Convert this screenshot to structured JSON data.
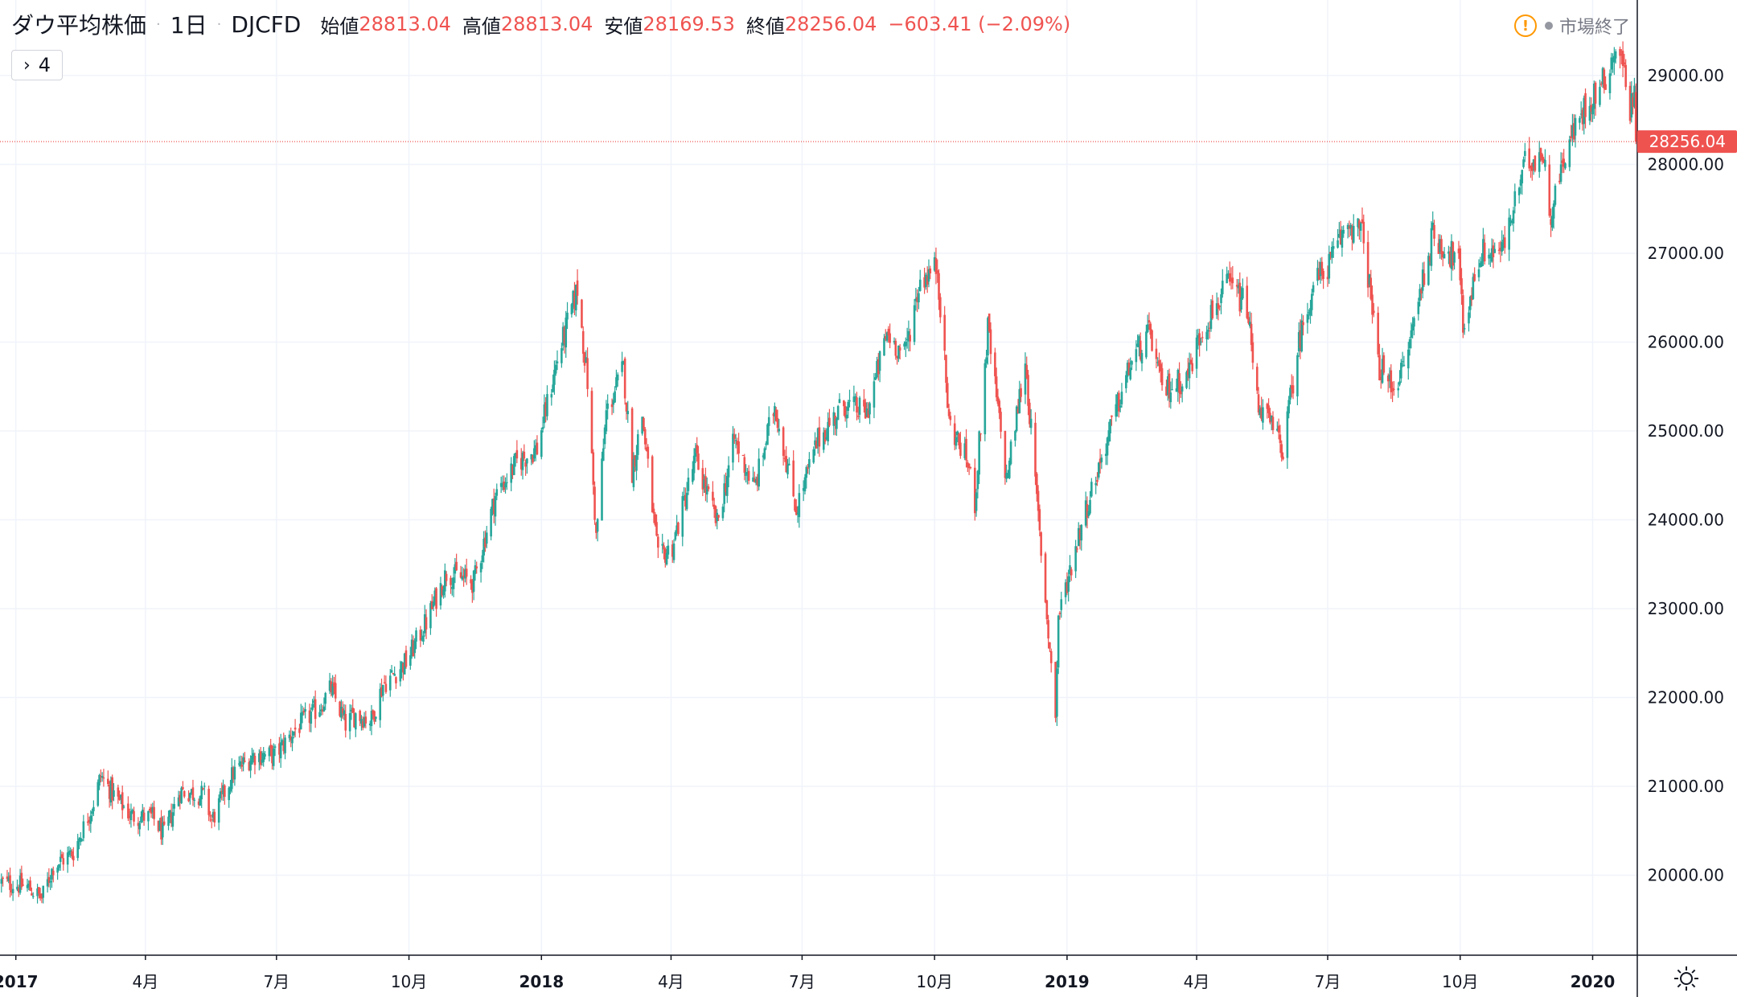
{
  "header": {
    "title": "ダウ平均株価",
    "interval": "1日",
    "symbol": "DJCFD",
    "dot": "·",
    "open_label": "始値",
    "open_value": "28813.04",
    "high_label": "高値",
    "high_value": "28813.04",
    "low_label": "安値",
    "low_value": "28169.53",
    "close_label": "終値",
    "close_value": "28256.04",
    "change": "−603.41 (−2.09%)"
  },
  "indicators_button": {
    "chevron": "›",
    "count": "4"
  },
  "market_status": {
    "icon": "warning-icon",
    "warn_glyph": "!",
    "label": "市場終了"
  },
  "price_label": {
    "value": "28256.04",
    "color": "#ef5350"
  },
  "colors": {
    "up": "#26a69a",
    "down": "#ef5350",
    "grid": "#f0f3fa",
    "axis": "#131722",
    "background": "#ffffff"
  },
  "chart_data": {
    "type": "candlestick",
    "title": "ダウ平均株価",
    "interval": "1日",
    "symbol": "DJCFD",
    "x_tick_labels": [
      "2017",
      "4月",
      "7月",
      "10月",
      "2018",
      "4月",
      "7月",
      "10月",
      "2019",
      "4月",
      "7月",
      "10月",
      "2020"
    ],
    "x_tick_dates": [
      "2017-01-01",
      "2017-04-01",
      "2017-07-01",
      "2017-10-01",
      "2018-01-01",
      "2018-04-01",
      "2018-07-01",
      "2018-10-01",
      "2019-01-01",
      "2019-04-01",
      "2019-07-01",
      "2019-10-01",
      "2020-01-01"
    ],
    "y_tick_labels": [
      "20000.00",
      "21000.00",
      "22000.00",
      "23000.00",
      "24000.00",
      "25000.00",
      "26000.00",
      "27000.00",
      "28000.00",
      "29000.00"
    ],
    "y_ticks": [
      20000,
      21000,
      22000,
      23000,
      24000,
      25000,
      26000,
      27000,
      28000,
      29000
    ],
    "ylim": [
      19100,
      29850
    ],
    "xlim": [
      "2016-12-21",
      "2020-02-01"
    ],
    "grid": true,
    "last_price": 28256.04,
    "series": [
      {
        "name": "DJCFD",
        "points": [
          [
            "2016-12-22",
            19920
          ],
          [
            "2017-01-09",
            19870
          ],
          [
            "2017-01-19",
            19740
          ],
          [
            "2017-01-27",
            20100
          ],
          [
            "2017-02-10",
            20260
          ],
          [
            "2017-02-24",
            20820
          ],
          [
            "2017-03-01",
            21120
          ],
          [
            "2017-03-10",
            20900
          ],
          [
            "2017-03-22",
            20670
          ],
          [
            "2017-04-06",
            20650
          ],
          [
            "2017-04-14",
            20450
          ],
          [
            "2017-04-25",
            20950
          ],
          [
            "2017-05-12",
            20900
          ],
          [
            "2017-05-17",
            20610
          ],
          [
            "2017-06-01",
            21150
          ],
          [
            "2017-06-15",
            21350
          ],
          [
            "2017-06-30",
            21350
          ],
          [
            "2017-07-14",
            21640
          ],
          [
            "2017-07-31",
            21900
          ],
          [
            "2017-08-08",
            22100
          ],
          [
            "2017-08-18",
            21700
          ],
          [
            "2017-08-25",
            21810
          ],
          [
            "2017-09-05",
            21750
          ],
          [
            "2017-09-13",
            22150
          ],
          [
            "2017-09-29",
            22400
          ],
          [
            "2017-10-13",
            22850
          ],
          [
            "2017-10-27",
            23400
          ],
          [
            "2017-11-15",
            23300
          ],
          [
            "2017-11-30",
            24270
          ],
          [
            "2017-12-15",
            24650
          ],
          [
            "2017-12-29",
            24800
          ],
          [
            "2018-01-12",
            25800
          ],
          [
            "2018-01-26",
            26600
          ],
          [
            "2018-02-02",
            25550
          ],
          [
            "2018-02-08",
            23800
          ],
          [
            "2018-02-15",
            25200
          ],
          [
            "2018-02-27",
            25700
          ],
          [
            "2018-03-05",
            24550
          ],
          [
            "2018-03-12",
            25180
          ],
          [
            "2018-03-23",
            23550
          ],
          [
            "2018-04-02",
            23700
          ],
          [
            "2018-04-18",
            24700
          ],
          [
            "2018-05-03",
            23950
          ],
          [
            "2018-05-15",
            24900
          ],
          [
            "2018-05-29",
            24350
          ],
          [
            "2018-06-12",
            25300
          ],
          [
            "2018-06-27",
            24120
          ],
          [
            "2018-07-12",
            24900
          ],
          [
            "2018-07-30",
            25300
          ],
          [
            "2018-08-15",
            25200
          ],
          [
            "2018-08-29",
            26100
          ],
          [
            "2018-09-10",
            25850
          ],
          [
            "2018-09-21",
            26700
          ],
          [
            "2018-10-03",
            26850
          ],
          [
            "2018-10-11",
            25100
          ],
          [
            "2018-10-24",
            24650
          ],
          [
            "2018-10-29",
            24200
          ],
          [
            "2018-11-07",
            26150
          ],
          [
            "2018-11-20",
            24450
          ],
          [
            "2018-12-03",
            25800
          ],
          [
            "2018-12-10",
            24400
          ],
          [
            "2018-12-24",
            21800
          ],
          [
            "2018-12-26",
            22900
          ],
          [
            "2019-01-10",
            23900
          ],
          [
            "2019-01-25",
            24700
          ],
          [
            "2019-02-15",
            25800
          ],
          [
            "2019-02-28",
            26100
          ],
          [
            "2019-03-08",
            25450
          ],
          [
            "2019-03-25",
            25600
          ],
          [
            "2019-04-05",
            26150
          ],
          [
            "2019-04-23",
            26650
          ],
          [
            "2019-05-06",
            26400
          ],
          [
            "2019-05-13",
            25350
          ],
          [
            "2019-05-31",
            24800
          ],
          [
            "2019-06-11",
            26000
          ],
          [
            "2019-06-21",
            26650
          ],
          [
            "2019-07-03",
            26900
          ],
          [
            "2019-07-15",
            27350
          ],
          [
            "2019-07-26",
            27200
          ],
          [
            "2019-08-05",
            25750
          ],
          [
            "2019-08-14",
            25500
          ],
          [
            "2019-08-23",
            25700
          ],
          [
            "2019-09-06",
            26800
          ],
          [
            "2019-09-12",
            27200
          ],
          [
            "2019-09-30",
            26900
          ],
          [
            "2019-10-03",
            26150
          ],
          [
            "2019-10-15",
            27000
          ],
          [
            "2019-10-31",
            27050
          ],
          [
            "2019-11-15",
            28000
          ],
          [
            "2019-11-27",
            28150
          ],
          [
            "2019-12-03",
            27450
          ],
          [
            "2019-12-13",
            28150
          ],
          [
            "2019-12-27",
            28650
          ],
          [
            "2020-01-09",
            28950
          ],
          [
            "2020-01-17",
            29300
          ],
          [
            "2020-01-22",
            29150
          ],
          [
            "2020-01-24",
            28900
          ],
          [
            "2020-01-27",
            28650
          ],
          [
            "2020-01-30",
            28850
          ],
          [
            "2020-01-31",
            28256.04
          ]
        ]
      }
    ]
  }
}
